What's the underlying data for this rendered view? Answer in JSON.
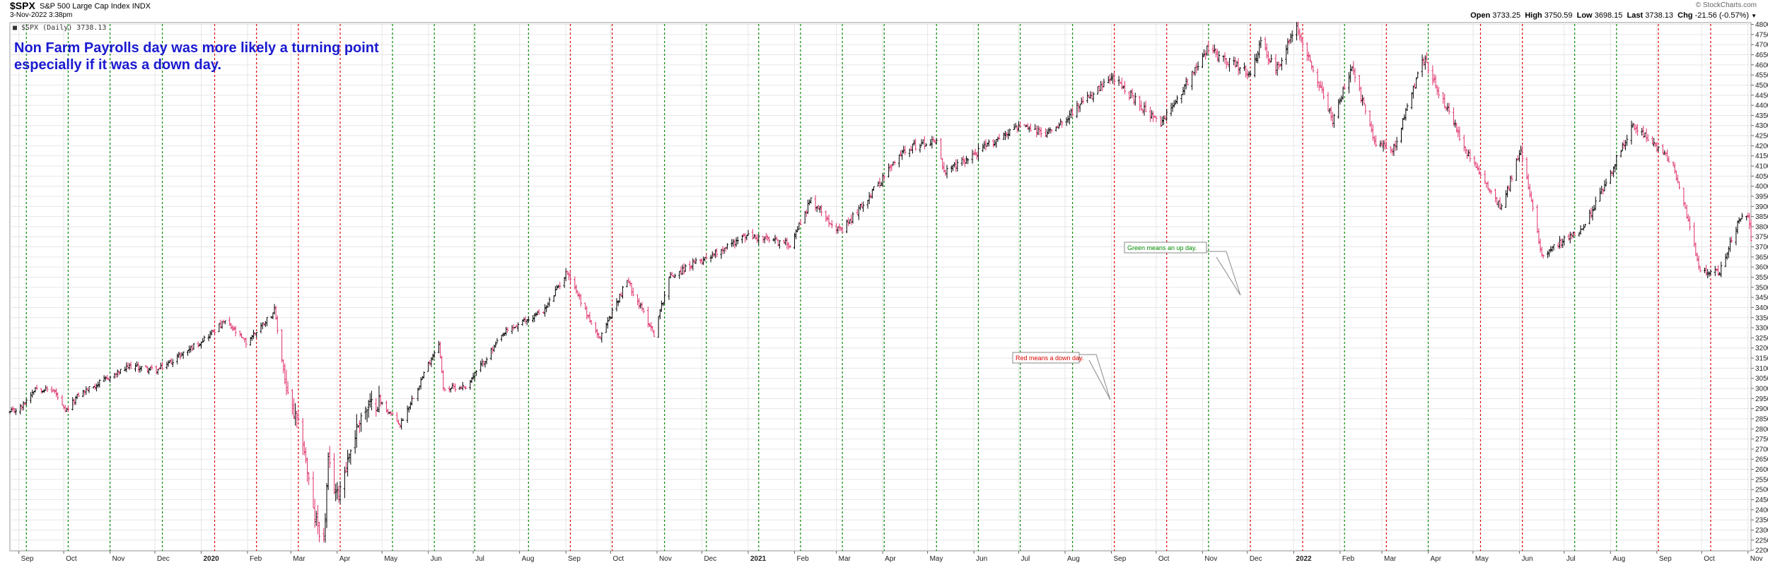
{
  "header": {
    "ticker": "$SPX",
    "index_name": "S&P 500 Large Cap Index",
    "exchange": "INDX",
    "datetime": "3-Nov-2022 3:38pm",
    "watermark": "© StockCharts.com",
    "open_label": "Open",
    "open": "3733.25",
    "high_label": "High",
    "high": "3750.59",
    "low_label": "Low",
    "low": "3698.15",
    "last_label": "Last",
    "last": "3738.13",
    "chg_label": "Chg",
    "chg": "-21.56 (-0.57%)"
  },
  "legend": "■ $SPX (Daily) 3738.13",
  "annotations": {
    "main": [
      "Non Farm Payrolls day was more likely a turning point",
      "especially if it was a down day."
    ],
    "green_note": "Green means an up day.",
    "red_note": "Red means a down day."
  },
  "colors": {
    "up": "#008800",
    "down": "#dd0000",
    "up_bar": "#000000",
    "down_bar": "#e0306a",
    "annotation": "#1a1ad0",
    "grid": "#e6e6e6"
  },
  "chart_data": {
    "type": "ohlc",
    "symbol": "$SPX",
    "period": "Daily",
    "x_range": [
      "2019-08-26",
      "2022-11-03"
    ],
    "ylim": [
      2196.8,
      4808.9
    ],
    "y_ticks": [
      2200,
      2250,
      2300,
      2350,
      2400,
      2450,
      2500,
      2550,
      2600,
      2650,
      2700,
      2750,
      2800,
      2850,
      2900,
      2950,
      3000,
      3050,
      3100,
      3150,
      3200,
      3250,
      3300,
      3350,
      3400,
      3450,
      3500,
      3550,
      3600,
      3650,
      3700,
      3750,
      3800,
      3850,
      3900,
      3950,
      4000,
      4050,
      4100,
      4150,
      4200,
      4250,
      4300,
      4350,
      4400,
      4450,
      4500,
      4550,
      4600,
      4650,
      4700,
      4750,
      4800
    ],
    "month_labels": [
      {
        "date": "2019-09-01",
        "label": "Sep"
      },
      {
        "date": "2019-10-01",
        "label": "Oct"
      },
      {
        "date": "2019-11-01",
        "label": "Nov"
      },
      {
        "date": "2019-12-01",
        "label": "Dec"
      },
      {
        "date": "2020-01-01",
        "label": "2020",
        "year": true
      },
      {
        "date": "2020-02-01",
        "label": "Feb"
      },
      {
        "date": "2020-03-01",
        "label": "Mar"
      },
      {
        "date": "2020-04-01",
        "label": "Apr"
      },
      {
        "date": "2020-05-01",
        "label": "May"
      },
      {
        "date": "2020-06-01",
        "label": "Jun"
      },
      {
        "date": "2020-07-01",
        "label": "Jul"
      },
      {
        "date": "2020-08-01",
        "label": "Aug"
      },
      {
        "date": "2020-09-01",
        "label": "Sep"
      },
      {
        "date": "2020-10-01",
        "label": "Oct"
      },
      {
        "date": "2020-11-01",
        "label": "Nov"
      },
      {
        "date": "2020-12-01",
        "label": "Dec"
      },
      {
        "date": "2021-01-01",
        "label": "2021",
        "year": true
      },
      {
        "date": "2021-02-01",
        "label": "Feb"
      },
      {
        "date": "2021-03-01",
        "label": "Mar"
      },
      {
        "date": "2021-04-01",
        "label": "Apr"
      },
      {
        "date": "2021-05-01",
        "label": "May"
      },
      {
        "date": "2021-06-01",
        "label": "Jun"
      },
      {
        "date": "2021-07-01",
        "label": "Jul"
      },
      {
        "date": "2021-08-01",
        "label": "Aug"
      },
      {
        "date": "2021-09-01",
        "label": "Sep"
      },
      {
        "date": "2021-10-01",
        "label": "Oct"
      },
      {
        "date": "2021-11-01",
        "label": "Nov"
      },
      {
        "date": "2021-12-01",
        "label": "Dec"
      },
      {
        "date": "2022-01-01",
        "label": "2022",
        "year": true
      },
      {
        "date": "2022-02-01",
        "label": "Feb"
      },
      {
        "date": "2022-03-01",
        "label": "Mar"
      },
      {
        "date": "2022-04-01",
        "label": "Apr"
      },
      {
        "date": "2022-05-01",
        "label": "May"
      },
      {
        "date": "2022-06-01",
        "label": "Jun"
      },
      {
        "date": "2022-07-01",
        "label": "Jul"
      },
      {
        "date": "2022-08-01",
        "label": "Aug"
      },
      {
        "date": "2022-09-01",
        "label": "Sep"
      },
      {
        "date": "2022-10-01",
        "label": "Oct"
      },
      {
        "date": "2022-11-01",
        "label": "Nov"
      }
    ],
    "payroll_days": [
      {
        "date": "2019-09-06",
        "dir": "up"
      },
      {
        "date": "2019-10-04",
        "dir": "up"
      },
      {
        "date": "2019-11-01",
        "dir": "up"
      },
      {
        "date": "2019-12-06",
        "dir": "up"
      },
      {
        "date": "2020-01-10",
        "dir": "down"
      },
      {
        "date": "2020-02-07",
        "dir": "down"
      },
      {
        "date": "2020-03-06",
        "dir": "down"
      },
      {
        "date": "2020-04-03",
        "dir": "down"
      },
      {
        "date": "2020-05-08",
        "dir": "up"
      },
      {
        "date": "2020-06-05",
        "dir": "up"
      },
      {
        "date": "2020-07-02",
        "dir": "up"
      },
      {
        "date": "2020-08-07",
        "dir": "up"
      },
      {
        "date": "2020-09-04",
        "dir": "down"
      },
      {
        "date": "2020-10-02",
        "dir": "down"
      },
      {
        "date": "2020-11-06",
        "dir": "up"
      },
      {
        "date": "2020-12-04",
        "dir": "up"
      },
      {
        "date": "2021-01-08",
        "dir": "up"
      },
      {
        "date": "2021-02-05",
        "dir": "up"
      },
      {
        "date": "2021-03-05",
        "dir": "up"
      },
      {
        "date": "2021-04-02",
        "dir": "up"
      },
      {
        "date": "2021-05-07",
        "dir": "up"
      },
      {
        "date": "2021-06-04",
        "dir": "up"
      },
      {
        "date": "2021-07-02",
        "dir": "up"
      },
      {
        "date": "2021-08-06",
        "dir": "up"
      },
      {
        "date": "2021-09-03",
        "dir": "down"
      },
      {
        "date": "2021-10-08",
        "dir": "down"
      },
      {
        "date": "2021-11-05",
        "dir": "up"
      },
      {
        "date": "2021-12-03",
        "dir": "down"
      },
      {
        "date": "2022-01-07",
        "dir": "down"
      },
      {
        "date": "2022-02-04",
        "dir": "up"
      },
      {
        "date": "2022-03-04",
        "dir": "down"
      },
      {
        "date": "2022-04-01",
        "dir": "up"
      },
      {
        "date": "2022-05-06",
        "dir": "down"
      },
      {
        "date": "2022-06-03",
        "dir": "down"
      },
      {
        "date": "2022-07-08",
        "dir": "up"
      },
      {
        "date": "2022-08-05",
        "dir": "up"
      },
      {
        "date": "2022-09-02",
        "dir": "down"
      },
      {
        "date": "2022-10-07",
        "dir": "down"
      }
    ],
    "price_path": [
      [
        "2019-08-26",
        2880
      ],
      [
        "2019-09-03",
        2910
      ],
      [
        "2019-09-12",
        3005
      ],
      [
        "2019-09-25",
        2985
      ],
      [
        "2019-10-02",
        2880
      ],
      [
        "2019-10-11",
        2970
      ],
      [
        "2019-10-28",
        3040
      ],
      [
        "2019-11-15",
        3110
      ],
      [
        "2019-12-03",
        3090
      ],
      [
        "2019-12-31",
        3230
      ],
      [
        "2020-01-17",
        3330
      ],
      [
        "2020-01-31",
        3225
      ],
      [
        "2020-02-19",
        3386
      ],
      [
        "2020-02-28",
        2950
      ],
      [
        "2020-03-09",
        2746
      ],
      [
        "2020-03-16",
        2386
      ],
      [
        "2020-03-23",
        2237
      ],
      [
        "2020-03-26",
        2630
      ],
      [
        "2020-04-01",
        2470
      ],
      [
        "2020-04-17",
        2875
      ],
      [
        "2020-04-29",
        2940
      ],
      [
        "2020-05-13",
        2820
      ],
      [
        "2020-06-08",
        3230
      ],
      [
        "2020-06-11",
        3000
      ],
      [
        "2020-06-26",
        3010
      ],
      [
        "2020-07-22",
        3275
      ],
      [
        "2020-08-18",
        3390
      ],
      [
        "2020-09-02",
        3580
      ],
      [
        "2020-09-23",
        3240
      ],
      [
        "2020-10-12",
        3535
      ],
      [
        "2020-10-30",
        3270
      ],
      [
        "2020-11-09",
        3550
      ],
      [
        "2020-12-31",
        3756
      ],
      [
        "2021-01-29",
        3714
      ],
      [
        "2021-02-12",
        3934
      ],
      [
        "2021-03-04",
        3770
      ],
      [
        "2021-04-16",
        4185
      ],
      [
        "2021-05-07",
        4232
      ],
      [
        "2021-05-12",
        4063
      ],
      [
        "2021-06-30",
        4297
      ],
      [
        "2021-07-19",
        4258
      ],
      [
        "2021-08-31",
        4523
      ],
      [
        "2021-09-02",
        4537
      ],
      [
        "2021-10-04",
        4300
      ],
      [
        "2021-11-04",
        4680
      ],
      [
        "2021-11-30",
        4567
      ],
      [
        "2021-12-03",
        4538
      ],
      [
        "2021-12-10",
        4712
      ],
      [
        "2021-12-20",
        4568
      ],
      [
        "2022-01-03",
        4796
      ],
      [
        "2022-01-27",
        4326
      ],
      [
        "2022-02-09",
        4587
      ],
      [
        "2022-02-24",
        4225
      ],
      [
        "2022-03-08",
        4170
      ],
      [
        "2022-03-29",
        4631
      ],
      [
        "2022-04-29",
        4132
      ],
      [
        "2022-05-20",
        3900
      ],
      [
        "2022-06-02",
        4176
      ],
      [
        "2022-06-16",
        3667
      ],
      [
        "2022-07-14",
        3790
      ],
      [
        "2022-08-16",
        4305
      ],
      [
        "2022-09-12",
        4110
      ],
      [
        "2022-09-30",
        3585
      ],
      [
        "2022-10-13",
        3575
      ],
      [
        "2022-10-26",
        3830
      ],
      [
        "2022-11-01",
        3856
      ],
      [
        "2022-11-03",
        3738
      ]
    ]
  }
}
